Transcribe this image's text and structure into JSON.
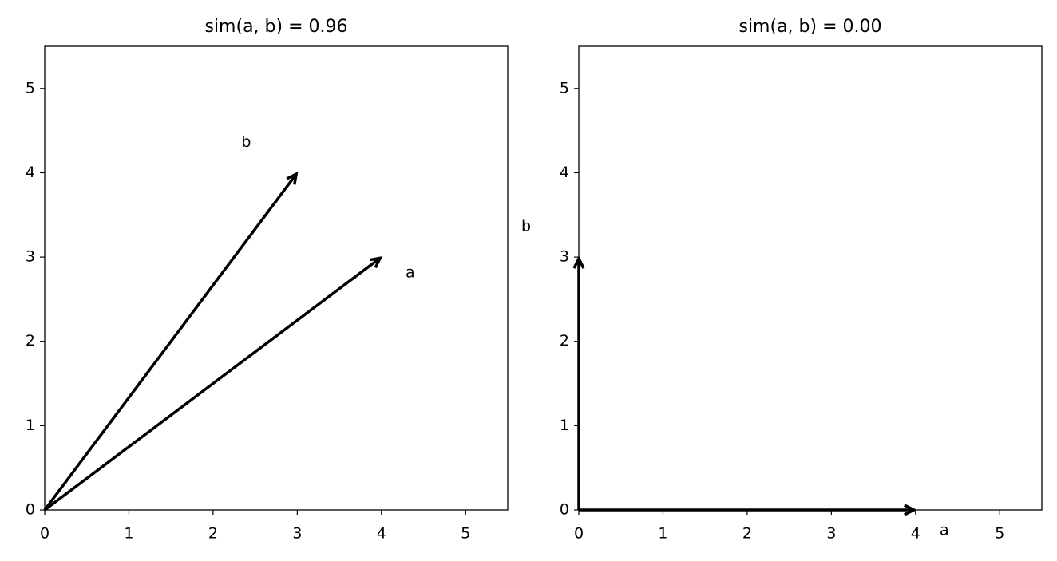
{
  "chart_data": [
    {
      "type": "quiver",
      "title": "sim(a, b) = 0.96",
      "xlim": [
        0,
        5.5
      ],
      "ylim": [
        0,
        5.5
      ],
      "xticks": [
        0,
        1,
        2,
        3,
        4,
        5
      ],
      "yticks": [
        0,
        1,
        2,
        3,
        4,
        5
      ],
      "series": [
        {
          "name": "a",
          "color": "#000000",
          "x0": 0,
          "y0": 0,
          "x": 4,
          "y": 3
        },
        {
          "name": "b",
          "color": "#000000",
          "x0": 0,
          "y0": 0,
          "x": 3,
          "y": 4
        }
      ]
    },
    {
      "type": "quiver",
      "title": "sim(a, b) = 0.00",
      "xlim": [
        0,
        5.5
      ],
      "ylim": [
        0,
        5.5
      ],
      "xticks": [
        0,
        1,
        2,
        3,
        4,
        5
      ],
      "yticks": [
        0,
        1,
        2,
        3,
        4,
        5
      ],
      "series": [
        {
          "name": "a",
          "color": "#000000",
          "x0": 0,
          "y0": 0,
          "x": 4,
          "y": 0
        },
        {
          "name": "b",
          "color": "#000000",
          "x0": 0,
          "y0": 0,
          "x": 0,
          "y": 3
        }
      ]
    }
  ]
}
